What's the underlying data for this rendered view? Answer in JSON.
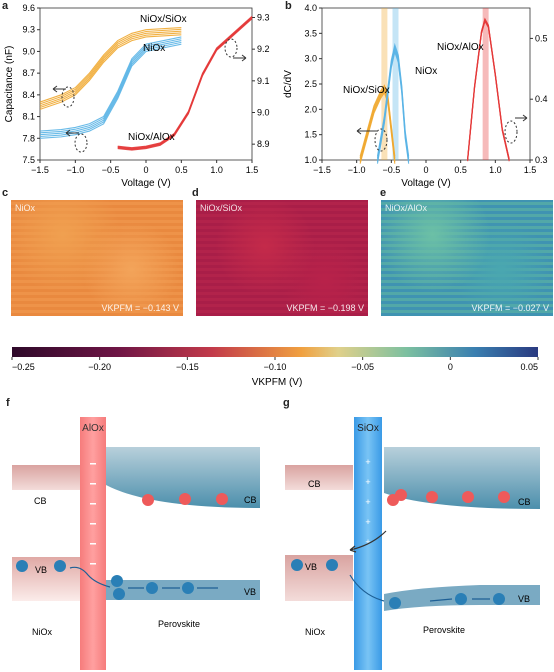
{
  "panels": {
    "a": {
      "letter": "a",
      "xlabel": "Voltage (V)",
      "ylabel": "Capacitance (nF)",
      "x_ticks": [
        "−1.5",
        "−1.0",
        "−0.5",
        "0",
        "0.5",
        "1.0",
        "1.5"
      ],
      "y_left_ticks": [
        "7.5",
        "7.8",
        "8.1",
        "8.4",
        "8.7",
        "9.0",
        "9.3",
        "9.6"
      ],
      "y_right_ticks": [
        "8.9",
        "9.0",
        "9.1",
        "9.2",
        "9.3"
      ],
      "series_labels": {
        "niox_siox": "NiOx/SiOx",
        "niox": "NiOx",
        "niox_alox": "NiOx/AlOx"
      }
    },
    "b": {
      "letter": "b",
      "xlabel": "Voltage (V)",
      "ylabel": "dC/dV",
      "x_ticks": [
        "−1.5",
        "−1.0",
        "−0.5",
        "0",
        "0.5",
        "1.0",
        "1.5"
      ],
      "y_left_ticks": [
        "1.0",
        "1.5",
        "2.0",
        "2.5",
        "3.0",
        "3.5",
        "4.0"
      ],
      "y_right_ticks": [
        "0.3",
        "0.4",
        "0.5"
      ],
      "series_labels": {
        "niox_siox": "NiOx/SiOx",
        "niox": "NiOx",
        "niox_alox": "NiOx/AlOx"
      }
    },
    "c": {
      "letter": "c",
      "caption": "NiOx",
      "value": "VKPFM = −0.143 V"
    },
    "d": {
      "letter": "d",
      "caption": "NiOx/SiOx",
      "value": "VKPFM = −0.198 V"
    },
    "e": {
      "letter": "e",
      "caption": "NiOx/AlOx",
      "value": "VKPFM = −0.027 V"
    },
    "colorbar": {
      "ticks": [
        "−0.25",
        "−0.20",
        "−0.15",
        "−0.10",
        "−0.05",
        "0",
        "0.05"
      ],
      "label": "VKPFM (V)"
    },
    "f": {
      "letter": "f",
      "barrier": "AlOx",
      "cb": "CB",
      "vb": "VB",
      "left": "NiOx",
      "right": "Perovskite"
    },
    "g": {
      "letter": "g",
      "barrier": "SiOx",
      "cb": "CB",
      "vb": "VB",
      "left": "NiOx",
      "right": "Perovskite"
    }
  },
  "colors": {
    "niox_siox": "#f0a830",
    "niox": "#5ab4e6",
    "niox_alox": "#e43a3a",
    "band": "#8fb8cc"
  },
  "chart_data": [
    {
      "type": "line",
      "title": "",
      "xlabel": "Voltage (V)",
      "ylabel": "Capacitance (nF)",
      "xlim": [
        -1.5,
        1.5
      ],
      "ylim": [
        7.5,
        9.6
      ],
      "ylim_right": [
        8.85,
        9.33
      ],
      "series": [
        {
          "name": "NiOx/SiOx",
          "x": [
            -1.5,
            -1.2,
            -1.0,
            -0.8,
            -0.6,
            -0.4,
            -0.2,
            0,
            0.5
          ],
          "y": [
            8.25,
            8.35,
            8.45,
            8.65,
            8.9,
            9.1,
            9.2,
            9.25,
            9.28
          ]
        },
        {
          "name": "NiOx",
          "x": [
            -1.5,
            -1.2,
            -1.0,
            -0.8,
            -0.6,
            -0.4,
            -0.2,
            0,
            0.5
          ],
          "y": [
            7.85,
            7.87,
            7.9,
            7.95,
            8.05,
            8.4,
            8.85,
            9.05,
            9.15
          ]
        },
        {
          "name": "NiOx/AlOx",
          "x": [
            -0.4,
            -0.2,
            0,
            0.2,
            0.4,
            0.6,
            0.8,
            1.0,
            1.2,
            1.5
          ],
          "y": [
            8.89,
            8.885,
            8.89,
            8.9,
            8.93,
            9.0,
            9.12,
            9.2,
            9.24,
            9.3
          ],
          "axis": "right"
        }
      ]
    },
    {
      "type": "line",
      "title": "",
      "xlabel": "Voltage (V)",
      "ylabel": "dC/dV",
      "xlim": [
        -1.5,
        1.5
      ],
      "ylim": [
        1.0,
        4.0
      ],
      "ylim_right": [
        0.3,
        0.55
      ],
      "series": [
        {
          "name": "NiOx/SiOx",
          "x": [
            -0.95,
            -0.85,
            -0.75,
            -0.65,
            -0.6,
            -0.55,
            -0.5,
            -0.45
          ],
          "y": [
            1.0,
            1.5,
            2.0,
            2.3,
            2.4,
            2.2,
            1.6,
            1.0
          ]
        },
        {
          "name": "NiOx",
          "x": [
            -0.7,
            -0.6,
            -0.5,
            -0.45,
            -0.4,
            -0.35,
            -0.3,
            -0.25
          ],
          "y": [
            1.0,
            1.8,
            2.9,
            3.2,
            3.0,
            2.4,
            1.5,
            1.0
          ]
        },
        {
          "name": "NiOx/AlOx",
          "x": [
            0.6,
            0.7,
            0.8,
            0.85,
            0.9,
            1.0,
            1.1,
            1.2
          ],
          "y": [
            0.3,
            0.42,
            0.51,
            0.53,
            0.52,
            0.44,
            0.35,
            0.3
          ],
          "axis": "right"
        }
      ]
    }
  ]
}
